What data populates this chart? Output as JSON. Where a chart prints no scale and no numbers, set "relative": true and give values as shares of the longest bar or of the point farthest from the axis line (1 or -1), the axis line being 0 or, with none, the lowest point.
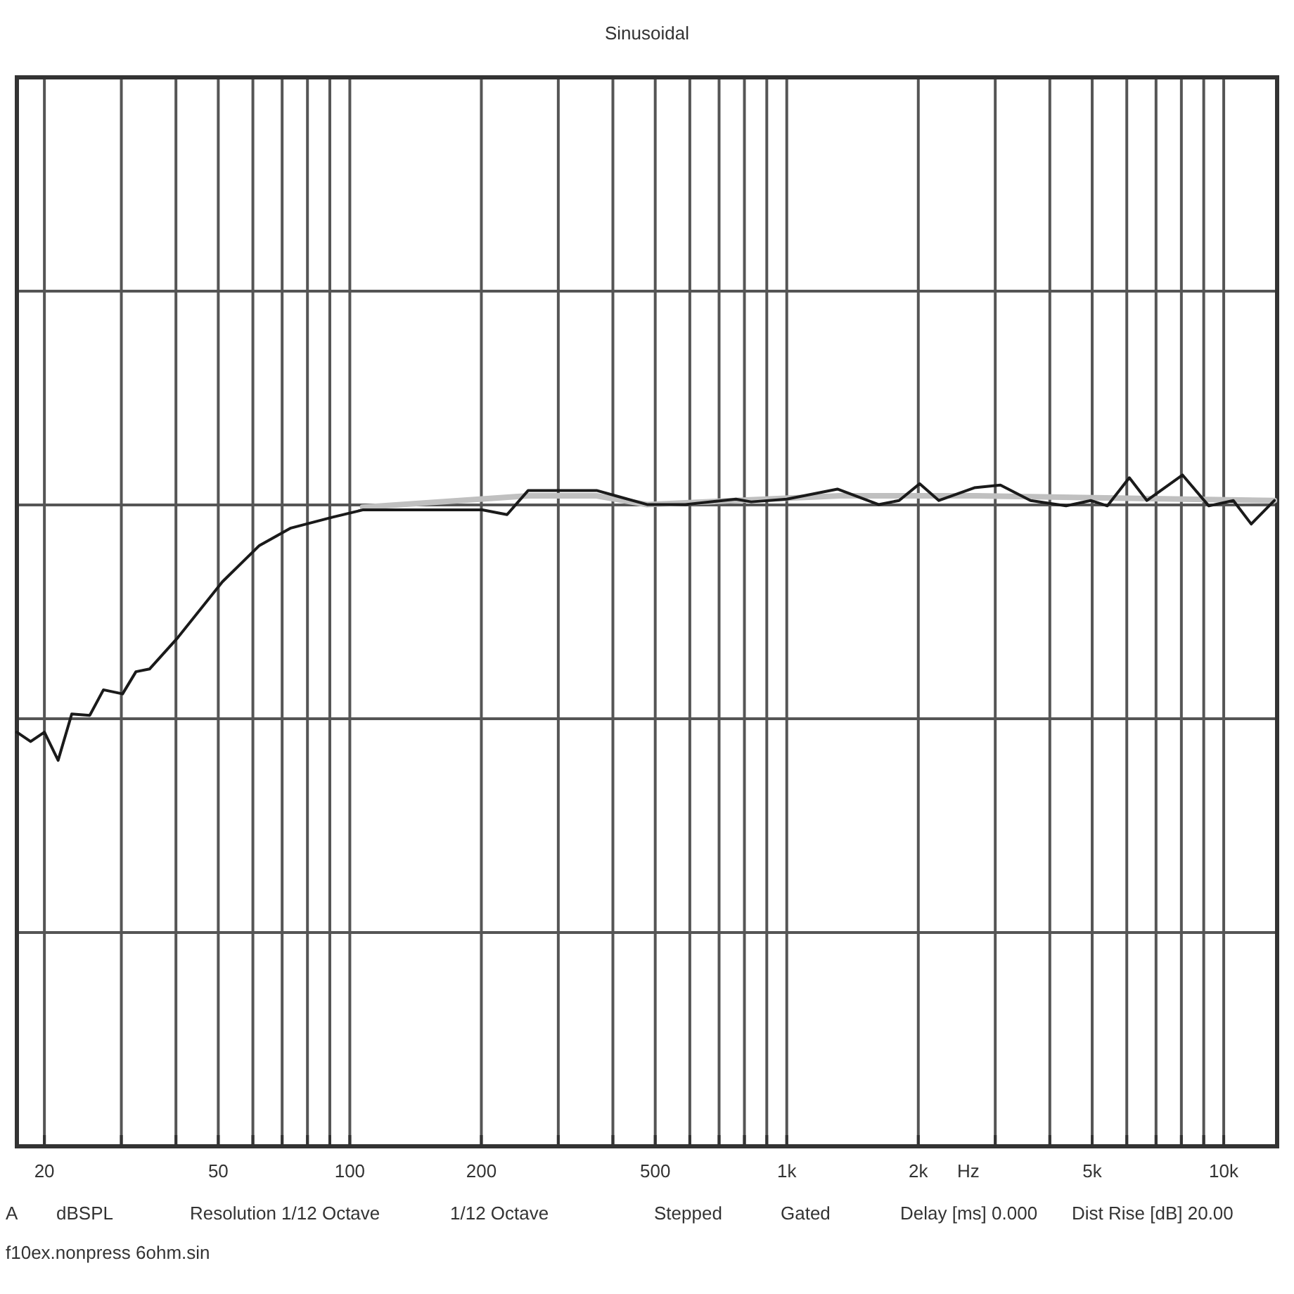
{
  "chart_data": {
    "type": "line",
    "title": "Sinusoidal",
    "xlabel": "Hz",
    "log": "x",
    "relative": true,
    "grid": true,
    "xlim": [
      17.3,
      13250
    ],
    "xticks": [
      20,
      {
        "value": 30,
        "label": null
      },
      {
        "value": 40,
        "label": null
      },
      50,
      {
        "value": 60,
        "label": null
      },
      {
        "value": 70,
        "label": null
      },
      {
        "value": 80,
        "label": null
      },
      {
        "value": 90,
        "label": null
      },
      100,
      200,
      {
        "value": 300,
        "label": null
      },
      {
        "value": 400,
        "label": null
      },
      500,
      {
        "value": 600,
        "label": null
      },
      {
        "value": 700,
        "label": null
      },
      {
        "value": 800,
        "label": null
      },
      {
        "value": 900,
        "label": null
      },
      {
        "value": 1000,
        "label": "1k"
      },
      {
        "value": 2000,
        "label": "2k"
      },
      {
        "value": 3000,
        "label": null
      },
      {
        "value": 4000,
        "label": null
      },
      {
        "value": 5000,
        "label": "5k"
      },
      {
        "value": 6000,
        "label": null
      },
      {
        "value": 7000,
        "label": null
      },
      {
        "value": 8000,
        "label": null
      },
      {
        "value": 9000,
        "label": null
      },
      {
        "value": 10000,
        "label": "10k"
      }
    ],
    "series": [
      {
        "color": "#c0c0c0",
        "x": [
          107,
          256,
          367,
          479,
          1322,
          2711,
          13060
        ],
        "values": [
          0.952,
          0.969,
          0.969,
          0.956,
          0.969,
          0.969,
          0.962
        ]
      },
      {
        "color": "#1a1a1a",
        "x": [
          17.3,
          18.6,
          20,
          21.5,
          23.1,
          25.4,
          27.3,
          30.2,
          32.4,
          34.8,
          40.3,
          51.1,
          62.1,
          73.3,
          91,
          107,
          159,
          201,
          229,
          256,
          367,
          406,
          479,
          586,
          765,
          829,
          1000,
          1306,
          1622,
          1807,
          2014,
          2229,
          2687,
          3083,
          3614,
          4357,
          4962,
          5417,
          6081,
          6672,
          8050,
          9245,
          10520,
          11560,
          13060
        ],
        "values": [
          0.617,
          0.603,
          0.617,
          0.575,
          0.644,
          0.642,
          0.68,
          0.674,
          0.707,
          0.711,
          0.757,
          0.841,
          0.895,
          0.921,
          0.937,
          0.948,
          0.948,
          0.948,
          0.941,
          0.977,
          0.977,
          0.969,
          0.956,
          0.956,
          0.964,
          0.96,
          0.964,
          0.979,
          0.956,
          0.962,
          0.987,
          0.962,
          0.981,
          0.985,
          0.962,
          0.954,
          0.962,
          0.954,
          0.996,
          0.962,
          1,
          0.954,
          0.962,
          0.927,
          0.962
        ]
      }
    ],
    "annotations": [
      "A",
      "dBSPL",
      "Resolution 1/12 Octave",
      "1/12 Octave",
      "Stepped",
      "Gated",
      "Delay [ms] 0.000",
      "Dist Rise [dB] 20.00",
      "f10ex.nonpress 6ohm.sin"
    ]
  }
}
